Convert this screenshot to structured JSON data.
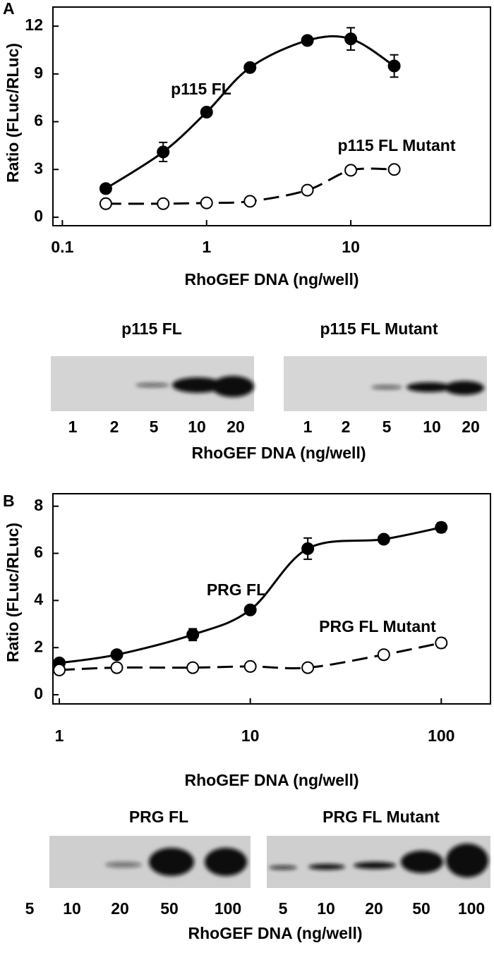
{
  "chart_data": [
    {
      "type": "line",
      "panel_label": "A",
      "xlabel": "RhoGEF DNA (ng/well)",
      "ylabel": "Ratio (FLuc/RLuc)",
      "xscale": "log",
      "xlim": [
        0.086,
        93
      ],
      "ylim": [
        0,
        13.2
      ],
      "xticks": [
        0.1,
        1,
        10
      ],
      "yticks": [
        0,
        3,
        6,
        9,
        12
      ],
      "x": [
        0.2,
        0.5,
        1,
        2,
        5,
        10,
        20
      ],
      "series": [
        {
          "name": "p115 FL",
          "color": "#000000",
          "marker": "filled",
          "line": "solid",
          "values": [
            1.8,
            4.1,
            6.6,
            9.4,
            11.1,
            11.2,
            9.5
          ],
          "errors": [
            null,
            0.6,
            null,
            null,
            null,
            0.7,
            0.7
          ]
        },
        {
          "name": "p115 FL Mutant",
          "color": "#000000",
          "marker": "open",
          "line": "dashed",
          "values": [
            0.85,
            0.85,
            0.9,
            1.0,
            1.7,
            2.95,
            3.0
          ],
          "errors": [
            null,
            null,
            null,
            null,
            null,
            null,
            null
          ]
        }
      ]
    },
    {
      "type": "line",
      "panel_label": "B",
      "xlabel": "RhoGEF DNA (ng/well)",
      "ylabel": "Ratio (FLuc/RLuc)",
      "xscale": "log",
      "xlim": [
        0.926,
        181
      ],
      "ylim": [
        0,
        8.53
      ],
      "xticks": [
        1,
        10,
        100
      ],
      "yticks": [
        0,
        2,
        4,
        6,
        8
      ],
      "x": [
        1,
        2,
        5,
        10,
        20,
        50,
        100
      ],
      "series": [
        {
          "name": "PRG FL",
          "color": "#000000",
          "marker": "filled",
          "line": "solid",
          "values": [
            1.35,
            1.7,
            2.55,
            3.6,
            6.2,
            6.6,
            7.1
          ],
          "errors": [
            null,
            null,
            0.25,
            null,
            0.45,
            null,
            0.2
          ]
        },
        {
          "name": "PRG FL Mutant",
          "color": "#000000",
          "marker": "open",
          "line": "dashed",
          "values": [
            1.05,
            1.15,
            1.15,
            1.2,
            1.15,
            1.7,
            2.2
          ],
          "errors": [
            null,
            null,
            null,
            null,
            null,
            null,
            0.2
          ]
        }
      ]
    }
  ],
  "blot_panels": [
    {
      "titles": [
        "p115 FL",
        "p115 FL Mutant"
      ],
      "lanes": [
        [
          "1",
          "2",
          "5",
          "10",
          "20"
        ],
        [
          "1",
          "2",
          "5",
          "10",
          "20"
        ]
      ],
      "axis_label": "RhoGEF DNA (ng/well)"
    },
    {
      "titles": [
        "PRG FL",
        "PRG FL Mutant"
      ],
      "lanes": [
        [
          "5",
          "10",
          "20",
          "50",
          "100"
        ],
        [
          "5",
          "10",
          "20",
          "50",
          "100"
        ]
      ],
      "axis_label": "RhoGEF DNA (ng/well)"
    }
  ]
}
